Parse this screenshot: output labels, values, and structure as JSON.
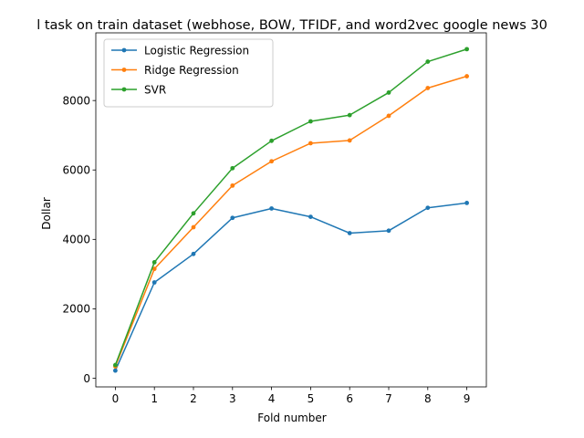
{
  "chart_data": {
    "type": "line",
    "title": "l task on train dataset (webhose, BOW, TFIDF, and word2vec google news 30",
    "xlabel": "Fold number",
    "ylabel": "Dollar",
    "x": [
      0,
      1,
      2,
      3,
      4,
      5,
      6,
      7,
      8,
      9
    ],
    "xticks": [
      0,
      1,
      2,
      3,
      4,
      5,
      6,
      7,
      8,
      9
    ],
    "yticks": [
      0,
      2000,
      4000,
      6000,
      8000
    ],
    "xlim": [
      -0.5,
      9.5
    ],
    "ylim": [
      -250,
      9950
    ],
    "grid": false,
    "legend_position": "top-left",
    "series": [
      {
        "name": "Logistic Regression",
        "color": "#1f77b4",
        "values": [
          220,
          2760,
          3580,
          4620,
          4890,
          4650,
          4180,
          4250,
          4910,
          5050
        ]
      },
      {
        "name": "Ridge Regression",
        "color": "#ff7f0e",
        "values": [
          340,
          3150,
          4350,
          5550,
          6250,
          6770,
          6850,
          7560,
          8360,
          8700
        ]
      },
      {
        "name": "SVR",
        "color": "#2ca02c",
        "values": [
          380,
          3340,
          4750,
          6050,
          6840,
          7400,
          7580,
          8230,
          9120,
          9480
        ]
      }
    ]
  }
}
